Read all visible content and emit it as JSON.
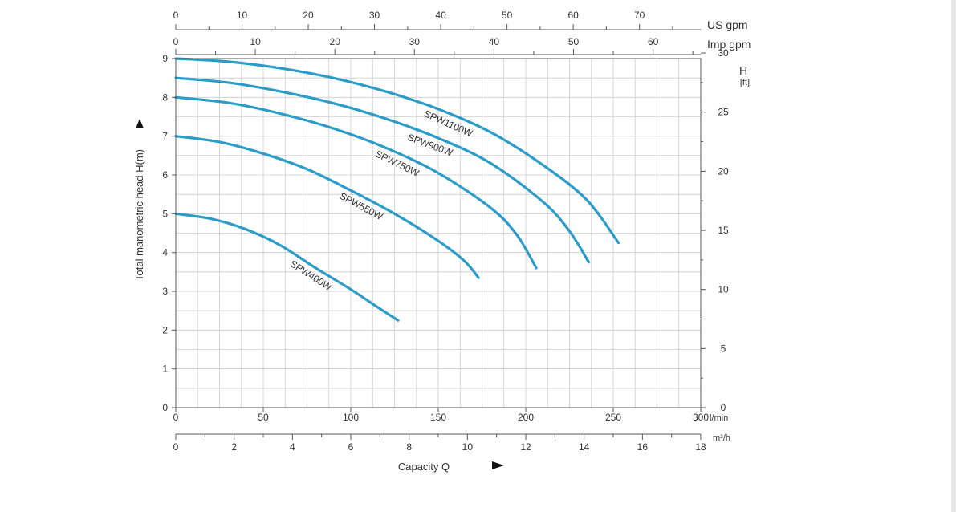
{
  "chart_data": {
    "type": "line",
    "xlabel": "Capacity Q",
    "ylabel": "Total manometric head H(m)",
    "xlim": [
      0,
      300
    ],
    "ylim": [
      0,
      9
    ],
    "x_ticks": [
      "0",
      "50",
      "100",
      "150",
      "200",
      "250",
      "300"
    ],
    "y_ticks": [
      "0",
      "1",
      "2",
      "3",
      "4",
      "5",
      "6",
      "7",
      "8",
      "9"
    ],
    "x_unit": "l/min",
    "secondary_axes": {
      "us_gpm": {
        "label": "US gpm",
        "ticks": [
          "0",
          "10",
          "20",
          "30",
          "40",
          "50",
          "60",
          "70"
        ]
      },
      "imp_gpm": {
        "label": "Imp gpm",
        "ticks": [
          "0",
          "10",
          "20",
          "30",
          "40",
          "50",
          "60"
        ]
      },
      "m3h": {
        "label": "m³/h",
        "ticks": [
          "0",
          "2",
          "4",
          "6",
          "8",
          "10",
          "12",
          "14",
          "16",
          "18"
        ]
      },
      "ft": {
        "label": "H",
        "unit": "[ft]",
        "ticks": [
          "0",
          "5",
          "10",
          "15",
          "20",
          "25",
          "30"
        ]
      }
    },
    "grid": true,
    "series": [
      {
        "name": "SPW400W",
        "x": [
          0,
          20,
          40,
          60,
          80,
          100,
          115,
          127
        ],
        "y": [
          5.0,
          4.87,
          4.6,
          4.18,
          3.6,
          3.05,
          2.6,
          2.25
        ]
      },
      {
        "name": "SPW550W",
        "x": [
          0,
          25,
          50,
          75,
          100,
          125,
          150,
          165,
          173
        ],
        "y": [
          7.0,
          6.85,
          6.55,
          6.15,
          5.6,
          5.0,
          4.3,
          3.78,
          3.35
        ]
      },
      {
        "name": "SPW750W",
        "x": [
          0,
          30,
          60,
          90,
          120,
          150,
          180,
          195,
          206
        ],
        "y": [
          8.0,
          7.86,
          7.58,
          7.2,
          6.7,
          6.05,
          5.15,
          4.45,
          3.6
        ]
      },
      {
        "name": "SPW900W",
        "x": [
          0,
          30,
          60,
          90,
          120,
          150,
          180,
          210,
          225,
          236
        ],
        "y": [
          8.5,
          8.38,
          8.15,
          7.85,
          7.45,
          6.95,
          6.3,
          5.3,
          4.55,
          3.75
        ]
      },
      {
        "name": "SPW1100W",
        "x": [
          0,
          30,
          60,
          90,
          120,
          150,
          180,
          210,
          235,
          253
        ],
        "y": [
          9.0,
          8.92,
          8.75,
          8.5,
          8.15,
          7.7,
          7.1,
          6.25,
          5.35,
          4.25
        ]
      }
    ],
    "colors": {
      "line": "#2b9cc8",
      "grid": "#cccccc",
      "axis": "#555555",
      "text": "#333333"
    }
  }
}
